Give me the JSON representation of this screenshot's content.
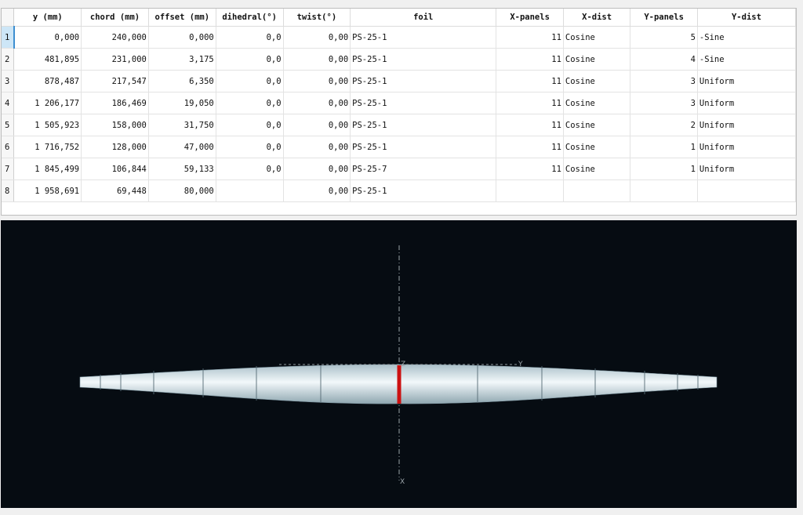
{
  "table": {
    "columns": [
      "y (mm)",
      "chord (mm)",
      "offset (mm)",
      "dihedral(°)",
      "twist(°)",
      "foil",
      "X-panels",
      "X-dist",
      "Y-panels",
      "Y-dist"
    ],
    "rows": [
      {
        "num": "1",
        "y": "0,000",
        "chord": "240,000",
        "offset": "0,000",
        "dihedral": "0,0",
        "twist": "0,00",
        "foil": "PS-25-1",
        "xpanels": "11",
        "xdist": "Cosine",
        "ypanels": "5",
        "ydist": "-Sine"
      },
      {
        "num": "2",
        "y": "481,895",
        "chord": "231,000",
        "offset": "3,175",
        "dihedral": "0,0",
        "twist": "0,00",
        "foil": "PS-25-1",
        "xpanels": "11",
        "xdist": "Cosine",
        "ypanels": "4",
        "ydist": "-Sine"
      },
      {
        "num": "3",
        "y": "878,487",
        "chord": "217,547",
        "offset": "6,350",
        "dihedral": "0,0",
        "twist": "0,00",
        "foil": "PS-25-1",
        "xpanels": "11",
        "xdist": "Cosine",
        "ypanels": "3",
        "ydist": "Uniform"
      },
      {
        "num": "4",
        "y": "1 206,177",
        "chord": "186,469",
        "offset": "19,050",
        "dihedral": "0,0",
        "twist": "0,00",
        "foil": "PS-25-1",
        "xpanels": "11",
        "xdist": "Cosine",
        "ypanels": "3",
        "ydist": "Uniform"
      },
      {
        "num": "5",
        "y": "1 505,923",
        "chord": "158,000",
        "offset": "31,750",
        "dihedral": "0,0",
        "twist": "0,00",
        "foil": "PS-25-1",
        "xpanels": "11",
        "xdist": "Cosine",
        "ypanels": "2",
        "ydist": "Uniform"
      },
      {
        "num": "6",
        "y": "1 716,752",
        "chord": "128,000",
        "offset": "47,000",
        "dihedral": "0,0",
        "twist": "0,00",
        "foil": "PS-25-1",
        "xpanels": "11",
        "xdist": "Cosine",
        "ypanels": "1",
        "ydist": "Uniform"
      },
      {
        "num": "7",
        "y": "1 845,499",
        "chord": "106,844",
        "offset": "59,133",
        "dihedral": "0,0",
        "twist": "0,00",
        "foil": "PS-25-7",
        "xpanels": "11",
        "xdist": "Cosine",
        "ypanels": "1",
        "ydist": "Uniform"
      },
      {
        "num": "8",
        "y": "1 958,691",
        "chord": "69,448",
        "offset": "80,000",
        "dihedral": "",
        "twist": "0,00",
        "foil": "PS-25-1",
        "xpanels": "",
        "xdist": "",
        "ypanels": "",
        "ydist": ""
      }
    ]
  },
  "view": {
    "axis_labels": {
      "z": "Z",
      "y": "Y",
      "x": "X"
    },
    "colors": {
      "background": "#060c12",
      "wing": "#dce9ee",
      "highlight": "#cc1111",
      "axis": "#9aa3a8"
    }
  }
}
